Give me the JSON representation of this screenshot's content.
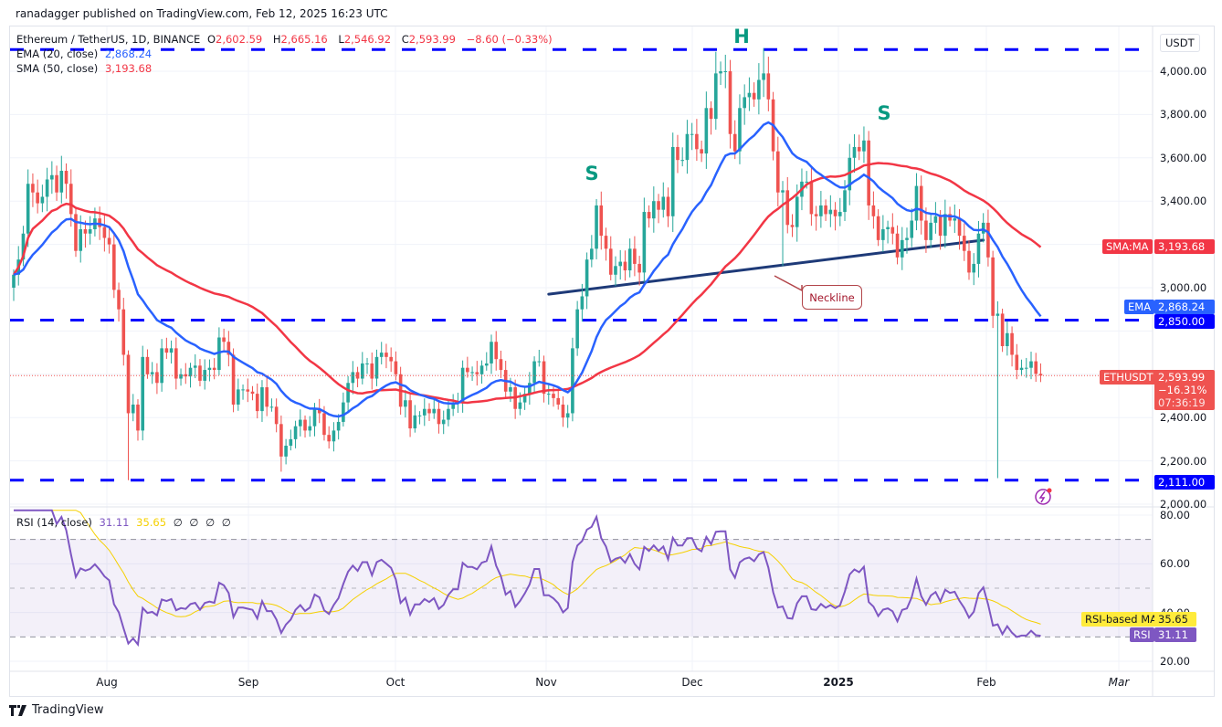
{
  "publisher": "ranadagger published on TradingView.com, Feb 12, 2025 16:23 UTC",
  "symbol": {
    "name": "Ethereum / TetherUS, 1D, BINANCE",
    "o_label": "O",
    "open": "2,602.59",
    "h_label": "H",
    "high": "2,665.16",
    "l_label": "L",
    "low": "2,546.92",
    "c_label": "C",
    "close": "2,593.99",
    "change": "−8.60 (−0.33%)"
  },
  "indicators": {
    "ema_label": "EMA (20, close)",
    "ema_value": "2,868.24",
    "sma_label": "SMA (50, close)",
    "sma_value": "3,193.68",
    "rsi_label": "RSI (14, close)",
    "rsi_value": "31.11",
    "rsi_ma_value": "35.65",
    "rsi_empty": [
      "∅",
      "∅",
      "∅",
      "∅"
    ]
  },
  "price_axis": {
    "currency": "USDT",
    "ticks": [
      "4,000.00",
      "3,800.00",
      "3,600.00",
      "3,400.00",
      "3,000.00",
      "2,400.00",
      "2,200.00",
      "2,000.00"
    ],
    "tick_values": [
      4000,
      3800,
      3600,
      3400,
      3000,
      2400,
      2200,
      2000
    ]
  },
  "tags": {
    "sma_name": "SMA:MA",
    "sma_value": "3,193.68",
    "ema_name": "EMA",
    "ema_value": "2,868.24",
    "level_2850": "2,850.00",
    "symbol_name": "ETHUSDT",
    "price": "2,593.99",
    "change_pct": "−16.31%",
    "countdown": "07:36:19",
    "level_2111": "2,111.00"
  },
  "rsi_axis": {
    "ticks": [
      "80.00",
      "60.00",
      "40.00",
      "20.00"
    ],
    "tick_values": [
      80,
      60,
      40,
      20
    ],
    "ma_tag": "RSI-based MA",
    "ma_value": "35.65",
    "rsi_tag": "RSI",
    "rsi_value": "31.11"
  },
  "time_axis": [
    "Aug",
    "Sep",
    "Oct",
    "Nov",
    "Dec",
    "2025",
    "Feb",
    "Mar"
  ],
  "annotations": {
    "left_shoulder": "S",
    "head": "H",
    "right_shoulder": "S",
    "neckline": "Neckline"
  },
  "footer": {
    "brand": "TradingView"
  },
  "colors": {
    "up": "#26a69a",
    "down": "#ef5350",
    "ema": "#2962ff",
    "sma": "#f23645",
    "levels": "#0000ff",
    "neckline": "#1e3a78",
    "rsi": "#7e57c2",
    "rsi_ma": "#f5d000"
  },
  "chart_data": {
    "type": "candlestick",
    "start_date": "2024-07-12",
    "interval": "1D",
    "ylim": [
      2000,
      4150
    ],
    "close": [
      3060,
      3130,
      3250,
      3480,
      3440,
      3390,
      3420,
      3500,
      3520,
      3440,
      3540,
      3480,
      3340,
      3170,
      3270,
      3250,
      3270,
      3320,
      3280,
      3230,
      3200,
      2990,
      2900,
      2690,
      2420,
      2460,
      2340,
      2680,
      2600,
      2610,
      2560,
      2720,
      2700,
      2720,
      2580,
      2600,
      2590,
      2630,
      2640,
      2570,
      2620,
      2630,
      2620,
      2770,
      2750,
      2690,
      2460,
      2530,
      2530,
      2520,
      2510,
      2430,
      2540,
      2450,
      2450,
      2370,
      2220,
      2270,
      2300,
      2360,
      2390,
      2340,
      2360,
      2440,
      2420,
      2320,
      2290,
      2340,
      2380,
      2470,
      2560,
      2610,
      2580,
      2650,
      2650,
      2580,
      2680,
      2700,
      2680,
      2660,
      2600,
      2450,
      2480,
      2350,
      2410,
      2410,
      2440,
      2420,
      2440,
      2370,
      2390,
      2440,
      2470,
      2470,
      2630,
      2610,
      2610,
      2600,
      2640,
      2650,
      2750,
      2670,
      2620,
      2520,
      2540,
      2440,
      2470,
      2510,
      2560,
      2660,
      2660,
      2510,
      2510,
      2490,
      2460,
      2400,
      2420,
      2720,
      2900,
      2960,
      3130,
      3180,
      3380,
      3240,
      3180,
      3060,
      3100,
      3120,
      3080,
      3180,
      3110,
      3070,
      3350,
      3320,
      3400,
      3360,
      3420,
      3330,
      3650,
      3590,
      3590,
      3710,
      3710,
      3640,
      3620,
      3830,
      3780,
      3990,
      4000,
      4000,
      3710,
      3630,
      3830,
      3880,
      3900,
      3870,
      3960,
      3990,
      3870,
      3630,
      3440,
      3450,
      3290,
      3280,
      3420,
      3490,
      3490,
      3340,
      3330,
      3380,
      3340,
      3360,
      3330,
      3350,
      3450,
      3600,
      3650,
      3630,
      3680,
      3380,
      3330,
      3220,
      3270,
      3280,
      3250,
      3140,
      3220,
      3230,
      3310,
      3470,
      3310,
      3220,
      3300,
      3330,
      3240,
      3340,
      3310,
      3320,
      3240,
      3170,
      3070,
      3110,
      3250,
      3300,
      3140,
      2870,
      2880,
      2730,
      2790,
      2690,
      2620,
      2630,
      2630,
      2660,
      2602,
      2594
    ],
    "notable_lows": {
      "2024-08-05": 2111,
      "2024-09-06": 2150,
      "2025-02-03": 2120,
      "2024-12-20": 3100
    },
    "notable_highs": {
      "2024-12-16": 4107,
      "2024-12-06": 4090,
      "2025-01-06": 3745
    },
    "levels": [
      4100,
      2850,
      2111
    ],
    "neckline": {
      "from": [
        "2024-11-01",
        2970
      ],
      "to": [
        "2025-01-31",
        3220
      ]
    },
    "current_price": 2593.99,
    "ema_period": 20,
    "sma_period": 50,
    "rsi_period": 14,
    "rsi_ma_period": 14,
    "rsi_ylim": [
      15,
      82
    ],
    "rsi_bands": [
      70,
      50,
      30
    ]
  }
}
